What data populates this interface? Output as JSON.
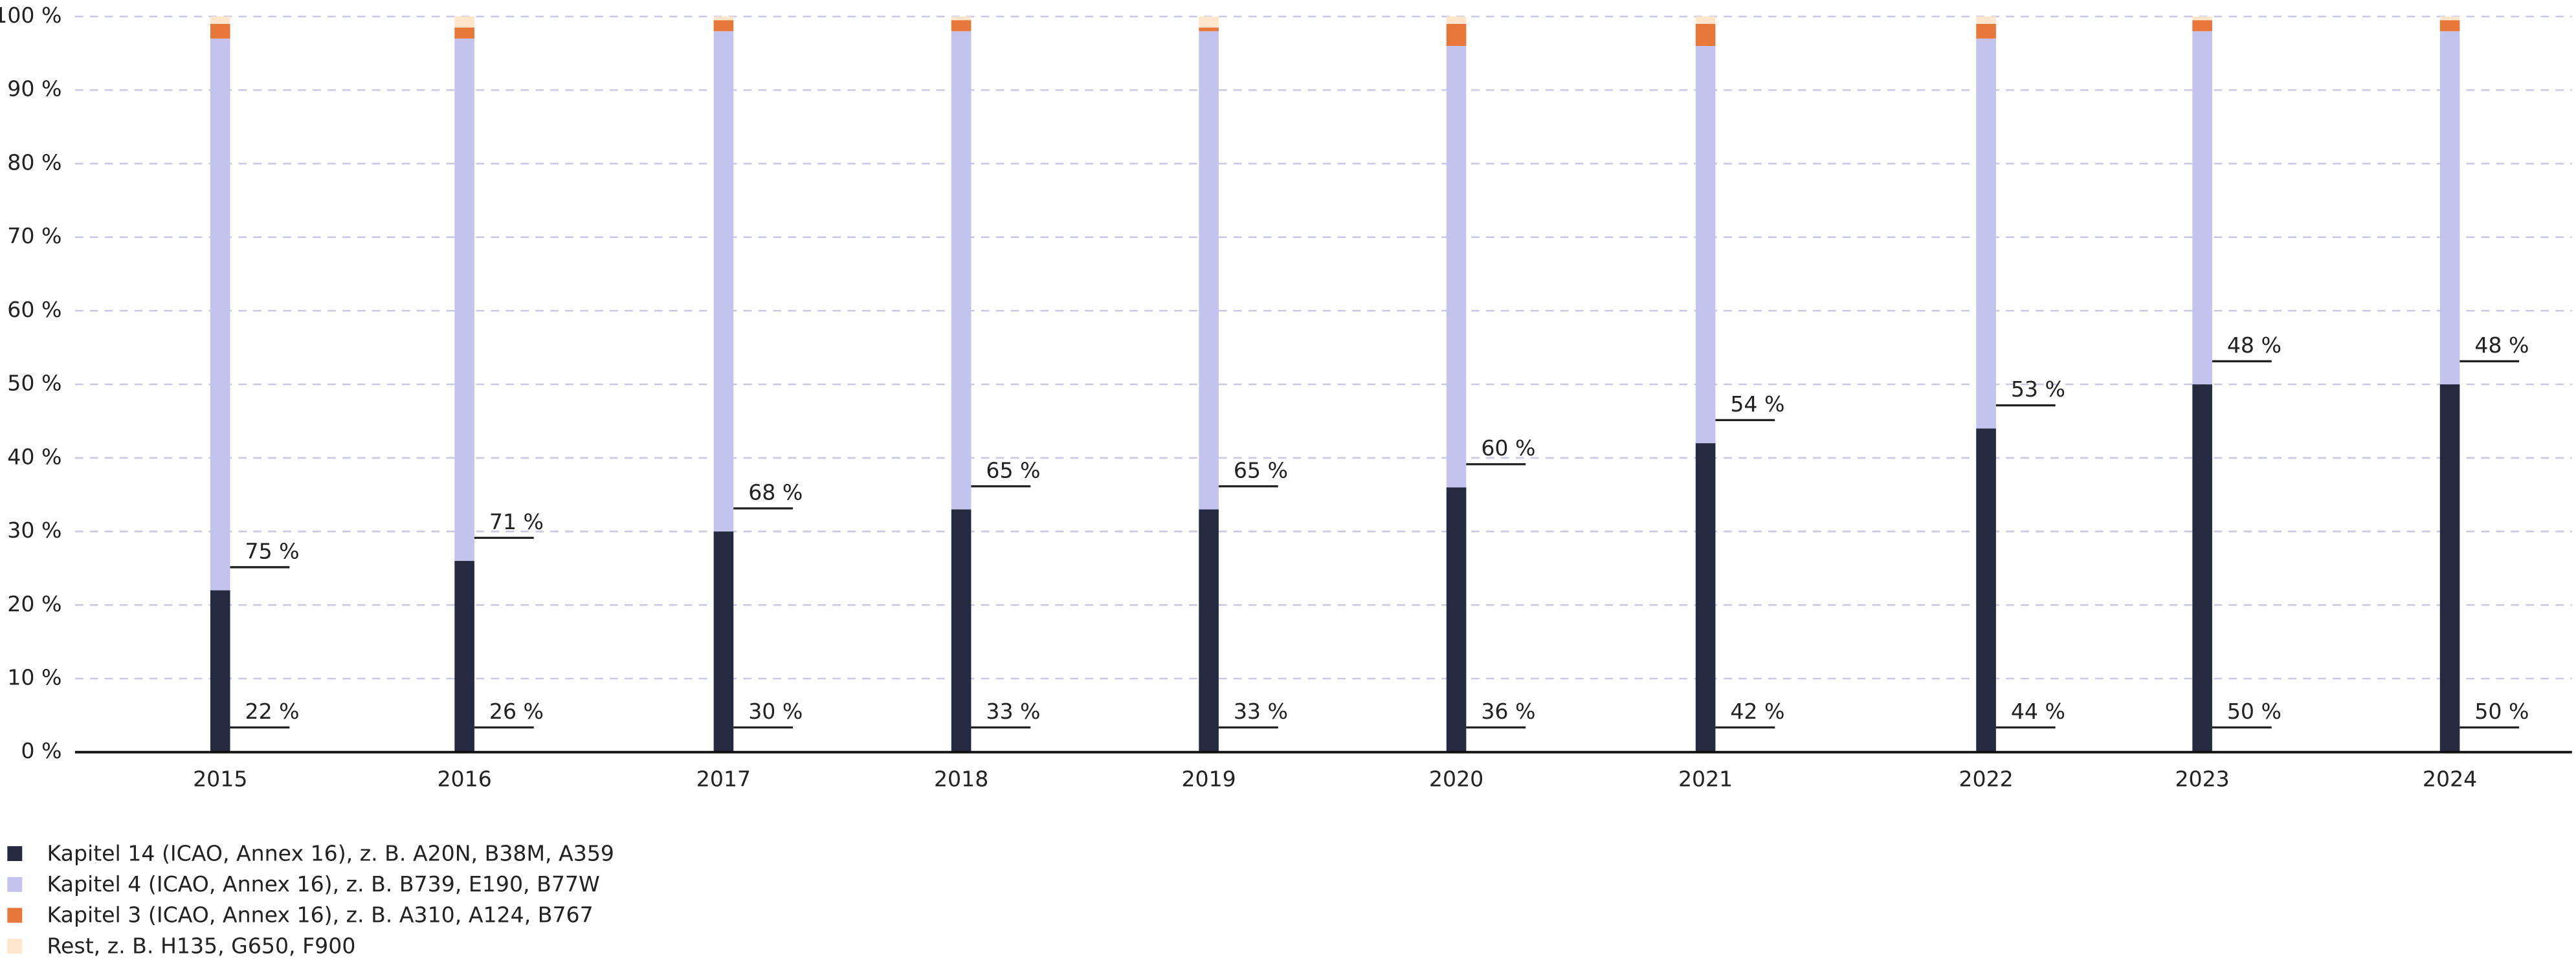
{
  "chart_data": {
    "type": "stacked-bar",
    "categories": [
      "2015",
      "2016",
      "2017",
      "2018",
      "2019",
      "2020",
      "2021",
      "2022",
      "2023",
      "2024"
    ],
    "series": [
      {
        "name": "Kapitel 14 (ICAO, Annex 16), z. B. A20N, B38M, A359",
        "color": "#262a40",
        "values": [
          22,
          26,
          30,
          33,
          33,
          36,
          42,
          44,
          50,
          50
        ],
        "value_labels": [
          "22 %",
          "26 %",
          "30 %",
          "33 %",
          "33 %",
          "36 %",
          "42 %",
          "44 %",
          "50 %",
          "50 %"
        ]
      },
      {
        "name": "Kapitel 4 (ICAO, Annex 16), z. B. B739, E190, B77W",
        "color": "#c3c3ee",
        "values": [
          75,
          71,
          68,
          65,
          65,
          60,
          54,
          53,
          48,
          48
        ],
        "value_labels": [
          "75 %",
          "71 %",
          "68 %",
          "65 %",
          "65 %",
          "60 %",
          "54 %",
          "53 %",
          "48 %",
          "48 %"
        ]
      },
      {
        "name": "Kapitel 3 (ICAO, Annex 16), z. B. A310, A124, B767",
        "color": "#e8773a",
        "values": [
          2,
          1.5,
          1.5,
          1.5,
          0.5,
          3,
          3,
          2,
          1.5,
          1.5
        ]
      },
      {
        "name": "Rest, z. B. H135, G650, F900",
        "color": "#fde6cc",
        "values": [
          1,
          1.5,
          0.5,
          0.5,
          1.5,
          1,
          1,
          1,
          0.5,
          0.5
        ]
      }
    ],
    "ylim": [
      0,
      100
    ],
    "yticks": [
      {
        "value": 0,
        "label": "0 %"
      },
      {
        "value": 10,
        "label": "10 %"
      },
      {
        "value": 20,
        "label": "20 %"
      },
      {
        "value": 30,
        "label": "30 %"
      },
      {
        "value": 40,
        "label": "40 %"
      },
      {
        "value": 50,
        "label": "50 %"
      },
      {
        "value": 60,
        "label": "60 %"
      },
      {
        "value": 70,
        "label": "70 %"
      },
      {
        "value": 80,
        "label": "80 %"
      },
      {
        "value": 90,
        "label": "90 %"
      },
      {
        "value": 100,
        "label": "100 %"
      }
    ],
    "grid": true,
    "legend": "bottom-left"
  }
}
